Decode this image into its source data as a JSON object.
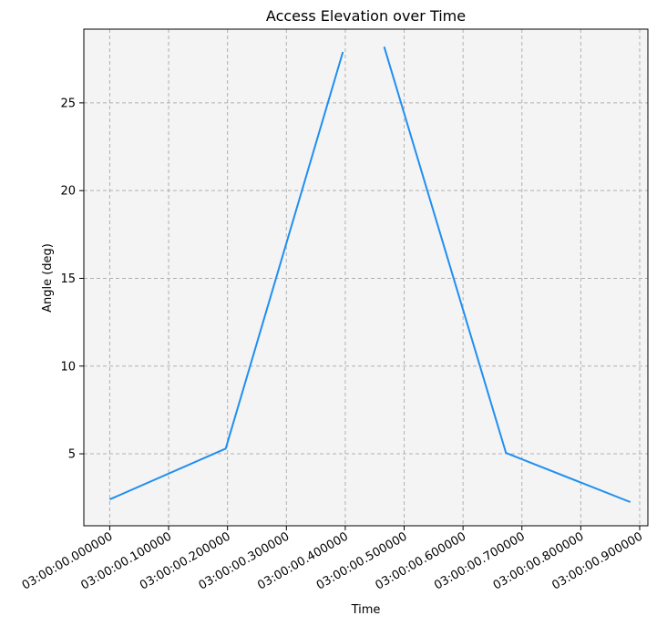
{
  "chart_data": {
    "type": "line",
    "title": "Access Elevation over Time",
    "xlabel": "Time",
    "ylabel": "Angle (deg)",
    "x_tick_labels": [
      "03:00:00.000000",
      "03:00:00.100000",
      "03:00:00.200000",
      "03:00:00.300000",
      "03:00:00.400000",
      "03:00:00.500000",
      "03:00:00.600000",
      "03:00:00.700000",
      "03:00:00.800000",
      "03:00:00.900000"
    ],
    "x_ticks_seconds": [
      0.0,
      0.1,
      0.2,
      0.3,
      0.4,
      0.5,
      0.6,
      0.7,
      0.8,
      0.9
    ],
    "xlim_seconds": [
      -0.044,
      0.9
    ],
    "ylim": [
      0.9,
      29.2
    ],
    "y_ticks": [
      5,
      10,
      15,
      20,
      25
    ],
    "grid": true,
    "background": "#f4f4f4",
    "series": [
      {
        "color": "#1f8ff0",
        "segments": [
          {
            "x_seconds": [
              0.0,
              0.197,
              0.396
            ],
            "y": [
              2.4,
              5.3,
              27.9
            ]
          },
          {
            "x_seconds": [
              0.466,
              0.673,
              0.884
            ],
            "y": [
              28.2,
              5.05,
              2.25
            ]
          }
        ]
      }
    ]
  }
}
